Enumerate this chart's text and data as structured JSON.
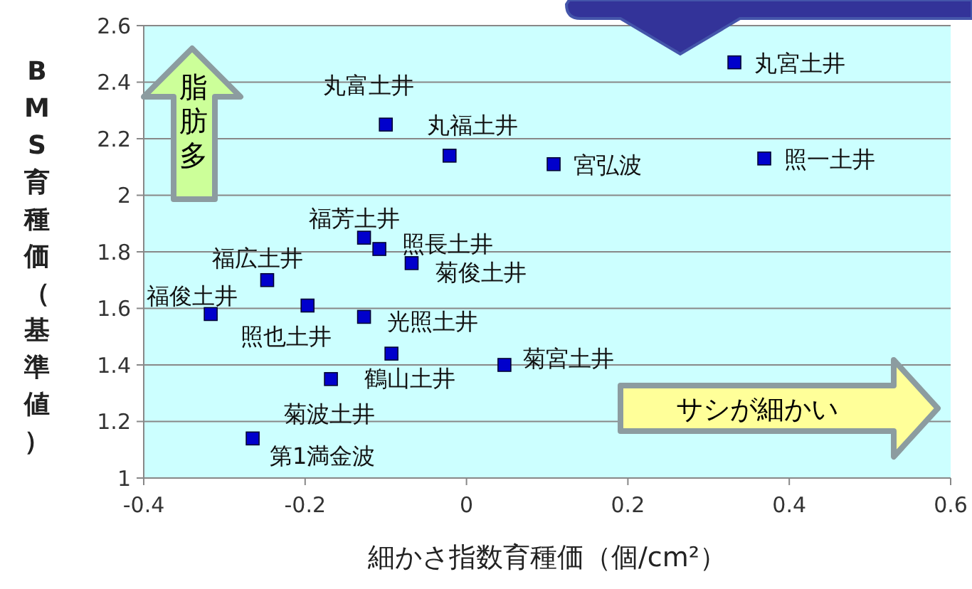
{
  "chart_data": {
    "type": "scatter",
    "xlabel": "細かさ指数育種価（個/cm²）",
    "ylabel": "BMS育種価（基準値）",
    "x": [
      0.332,
      -0.1,
      -0.021,
      0.108,
      0.369,
      -0.127,
      -0.108,
      -0.068,
      -0.247,
      -0.317,
      -0.197,
      -0.127,
      -0.093,
      0.047,
      -0.168,
      -0.265
    ],
    "values": [
      2.47,
      2.25,
      2.14,
      2.11,
      2.13,
      1.85,
      1.81,
      1.76,
      1.7,
      1.58,
      1.61,
      1.57,
      1.44,
      1.4,
      1.35,
      1.14
    ],
    "color": "#0000cc",
    "marker": "square",
    "xlim": [
      -0.4,
      0.6
    ],
    "xticks": [
      -0.4,
      -0.2,
      0,
      0.2,
      0.4,
      0.6
    ],
    "ylim": [
      1,
      2.6
    ],
    "yticks": [
      1,
      1.2,
      1.4,
      1.6,
      1.8,
      2,
      2.2,
      2.4,
      2.6
    ],
    "grid": "y",
    "annotations": [
      {
        "text": "丸宮土井",
        "x": 0.332,
        "y": 2.47
      },
      {
        "text": "丸富土井",
        "x": -0.1,
        "y": 2.25
      },
      {
        "text": "丸福土井",
        "x": -0.021,
        "y": 2.14
      },
      {
        "text": "宮弘波",
        "x": 0.108,
        "y": 2.11
      },
      {
        "text": "照一土井",
        "x": 0.369,
        "y": 2.13
      },
      {
        "text": "福芳土井",
        "x": -0.127,
        "y": 1.85
      },
      {
        "text": "照長土井",
        "x": -0.108,
        "y": 1.81
      },
      {
        "text": "菊俊土井",
        "x": -0.068,
        "y": 1.76
      },
      {
        "text": "福広土井",
        "x": -0.247,
        "y": 1.7
      },
      {
        "text": "福俊土井",
        "x": -0.317,
        "y": 1.58
      },
      {
        "text": "照也土井",
        "x": -0.197,
        "y": 1.61
      },
      {
        "text": "光照土井",
        "x": -0.127,
        "y": 1.57
      },
      {
        "text": "鶴山土井",
        "x": -0.093,
        "y": 1.44
      },
      {
        "text": "菊宮土井",
        "x": 0.047,
        "y": 1.4
      },
      {
        "text": "菊波土井",
        "x": -0.168,
        "y": 1.35
      },
      {
        "text": "第1満金波",
        "x": -0.265,
        "y": 1.14
      },
      "脂肪多",
      "サシが細かい"
    ]
  }
}
